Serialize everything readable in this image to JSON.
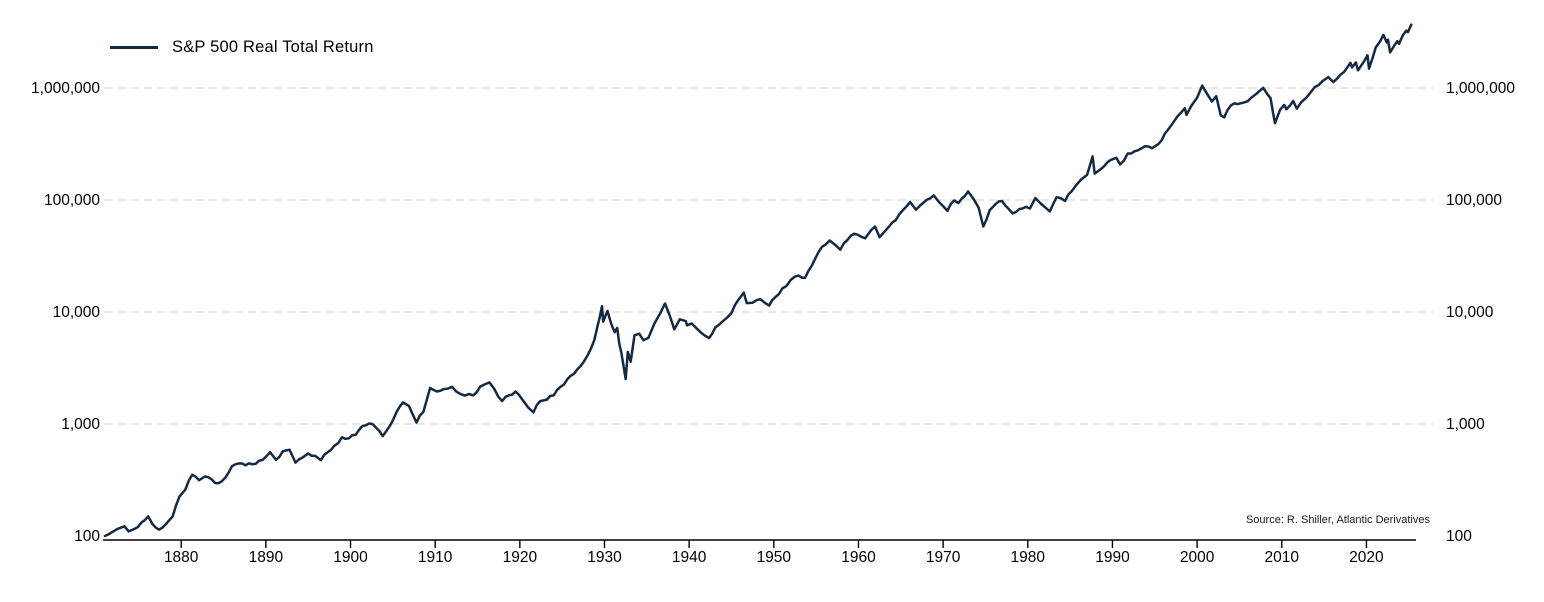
{
  "legend": {
    "label": "S&P 500 Real Total Return"
  },
  "source": "Source: R. Shiller, Atlantic Derivatives",
  "colors": {
    "series": "#132a44",
    "gridline": "#d9d9d9",
    "axis": "#000000",
    "text": "#000000"
  },
  "chart_data": {
    "type": "line",
    "title": "",
    "xlabel": "",
    "ylabel": "",
    "grid": "horizontal-dashed",
    "legend_position": "top-left",
    "x_axis": {
      "min": 1871,
      "max": 2025.5,
      "ticks": [
        1880,
        1890,
        1900,
        1910,
        1920,
        1930,
        1940,
        1950,
        1960,
        1970,
        1980,
        1990,
        2000,
        2010,
        2020
      ],
      "tick_labels": [
        "1880",
        "1890",
        "1900",
        "1910",
        "1920",
        "1930",
        "1940",
        "1950",
        "1960",
        "1970",
        "1980",
        "1990",
        "2000",
        "2010",
        "2020"
      ]
    },
    "y_axis": {
      "scale": "log",
      "min": 100,
      "max": 4500000,
      "ticks": [
        100,
        1000,
        10000,
        100000,
        1000000
      ],
      "tick_labels": [
        "100",
        "1,000",
        "10,000",
        "100,000",
        "1,000,000"
      ]
    },
    "series": [
      {
        "name": "S&P 500 Real Total Return",
        "x": [
          1871,
          1871.8,
          1872.5,
          1873.3,
          1873.8,
          1874.5,
          1875.3,
          1876.1,
          1876.6,
          1877.4,
          1878.2,
          1879,
          1879.8,
          1880.5,
          1881.3,
          1882.1,
          1882.8,
          1883.6,
          1884.4,
          1885.2,
          1886,
          1886.8,
          1887.6,
          1888.4,
          1889.2,
          1890,
          1890.5,
          1891.2,
          1892,
          1892.8,
          1893.5,
          1894.3,
          1895,
          1895.8,
          1896.5,
          1897.3,
          1898.1,
          1899,
          1899.8,
          1900.6,
          1901.4,
          1902.2,
          1903,
          1903.8,
          1904.6,
          1905.4,
          1906.2,
          1906.9,
          1907.8,
          1908.6,
          1909.4,
          1910.2,
          1911,
          1912,
          1913,
          1914.5,
          1915.3,
          1916.4,
          1917,
          1917.9,
          1918.7,
          1919.5,
          1920.3,
          1921,
          1921.6,
          1922.4,
          1923.2,
          1924,
          1924.8,
          1925.6,
          1926.4,
          1927.2,
          1928,
          1928.8,
          1929.2,
          1929.45,
          1929.7,
          1929.85,
          1930.1,
          1930.35,
          1930.8,
          1931.2,
          1931.5,
          1931.75,
          1932,
          1932.5,
          1932.75,
          1933.1,
          1933.55,
          1934.1,
          1934.6,
          1935.2,
          1935.9,
          1936.6,
          1937.15,
          1937.7,
          1938.25,
          1938.9,
          1939.6,
          1939.75,
          1940.3,
          1941,
          1941.8,
          1942.35,
          1943.1,
          1944,
          1945,
          1945.8,
          1946.45,
          1946.8,
          1947.5,
          1948.4,
          1949,
          1949.45,
          1950.2,
          1951,
          1952,
          1952.9,
          1953.7,
          1954.5,
          1955.3,
          1956.1,
          1956.6,
          1957.2,
          1957.85,
          1958.7,
          1959.5,
          1960.3,
          1960.8,
          1961.5,
          1961.95,
          1962.5,
          1963.2,
          1964,
          1964.8,
          1965.7,
          1966.1,
          1966.8,
          1967.7,
          1968.9,
          1969.5,
          1970.5,
          1971.3,
          1971.8,
          1972.2,
          1972.95,
          1973.7,
          1974.2,
          1974.75,
          1975.5,
          1976.2,
          1976.95,
          1978.2,
          1979,
          1979.8,
          1980.25,
          1980.9,
          1981.6,
          1982.6,
          1983.4,
          1984.4,
          1985.2,
          1986.3,
          1987,
          1987.65,
          1987.9,
          1988.6,
          1989.8,
          1990.45,
          1990.9,
          1991.8,
          1992.6,
          1993.4,
          1994.3,
          1994.7,
          1995.4,
          1996.2,
          1997,
          1997.7,
          1998.55,
          1998.75,
          1999.3,
          2000,
          2000.6,
          2001.2,
          2001.75,
          2002.25,
          2002.8,
          2003.2,
          2004,
          2004.8,
          2005.5,
          2006.4,
          2007.1,
          2007.8,
          2008.3,
          2008.68,
          2008.95,
          2009.2,
          2009.8,
          2010.3,
          2010.55,
          2011.35,
          2011.78,
          2012.3,
          2013,
          2013.9,
          2014.8,
          2015.5,
          2016.1,
          2016.9,
          2017.8,
          2018.1,
          2018.3,
          2018.75,
          2019,
          2019.7,
          2020.12,
          2020.3,
          2020.75,
          2021.1,
          2021.6,
          2022,
          2022.4,
          2022.55,
          2022.8,
          2023.3,
          2023.65,
          2023.85,
          2024.3,
          2024.7,
          2024.9,
          2025.3
        ],
        "y": [
          100,
          108,
          116,
          122,
          110,
          116,
          132,
          150,
          128,
          114,
          128,
          150,
          225,
          260,
          352,
          315,
          340,
          320,
          296,
          330,
          420,
          445,
          428,
          438,
          470,
          510,
          560,
          478,
          570,
          588,
          452,
          500,
          545,
          520,
          475,
          560,
          640,
          760,
          745,
          800,
          960,
          1010,
          930,
          780,
          950,
          1260,
          1560,
          1450,
          1030,
          1280,
          2100,
          1950,
          2050,
          2150,
          1850,
          1800,
          2150,
          2350,
          2050,
          1600,
          1800,
          1950,
          1650,
          1400,
          1270,
          1600,
          1650,
          1800,
          2150,
          2500,
          2800,
          3300,
          4100,
          5600,
          7600,
          9000,
          11300,
          8200,
          9200,
          10200,
          7800,
          6600,
          7200,
          5200,
          4300,
          2520,
          4400,
          3600,
          6200,
          6400,
          5600,
          5900,
          7900,
          9800,
          11900,
          9300,
          7000,
          8600,
          8300,
          7600,
          7900,
          7000,
          6200,
          5850,
          7300,
          8300,
          9800,
          12800,
          14900,
          12000,
          12100,
          13000,
          12000,
          11400,
          13600,
          16200,
          19300,
          21200,
          20200,
          26000,
          34500,
          40000,
          43500,
          40000,
          36000,
          44000,
          50000,
          47000,
          45500,
          54000,
          58000,
          46500,
          53500,
          63000,
          74000,
          88000,
          96000,
          82000,
          95000,
          110000,
          96000,
          80000,
          99000,
          94000,
          103000,
          119000,
          99000,
          85000,
          58000,
          81000,
          92000,
          98000,
          76000,
          83000,
          87000,
          84000,
          104000,
          92000,
          79000,
          106000,
          98000,
          120000,
          152000,
          168000,
          245000,
          172000,
          188000,
          228000,
          238000,
          208000,
          260000,
          272000,
          288000,
          300000,
          290000,
          315000,
          392000,
          470000,
          560000,
          660000,
          575000,
          690000,
          820000,
          1050000,
          880000,
          758000,
          845000,
          570000,
          548000,
          700000,
          718000,
          740000,
          820000,
          900000,
          1005000,
          880000,
          810000,
          610000,
          485000,
          640000,
          705000,
          645000,
          765000,
          655000,
          745000,
          835000,
          1020000,
          1150000,
          1250000,
          1130000,
          1310000,
          1550000,
          1680000,
          1530000,
          1690000,
          1440000,
          1720000,
          1960000,
          1490000,
          1880000,
          2300000,
          2600000,
          2980000,
          2550000,
          2700000,
          2080000,
          2400000,
          2620000,
          2480000,
          2950000,
          3250000,
          3150000,
          3680000
        ]
      }
    ]
  }
}
